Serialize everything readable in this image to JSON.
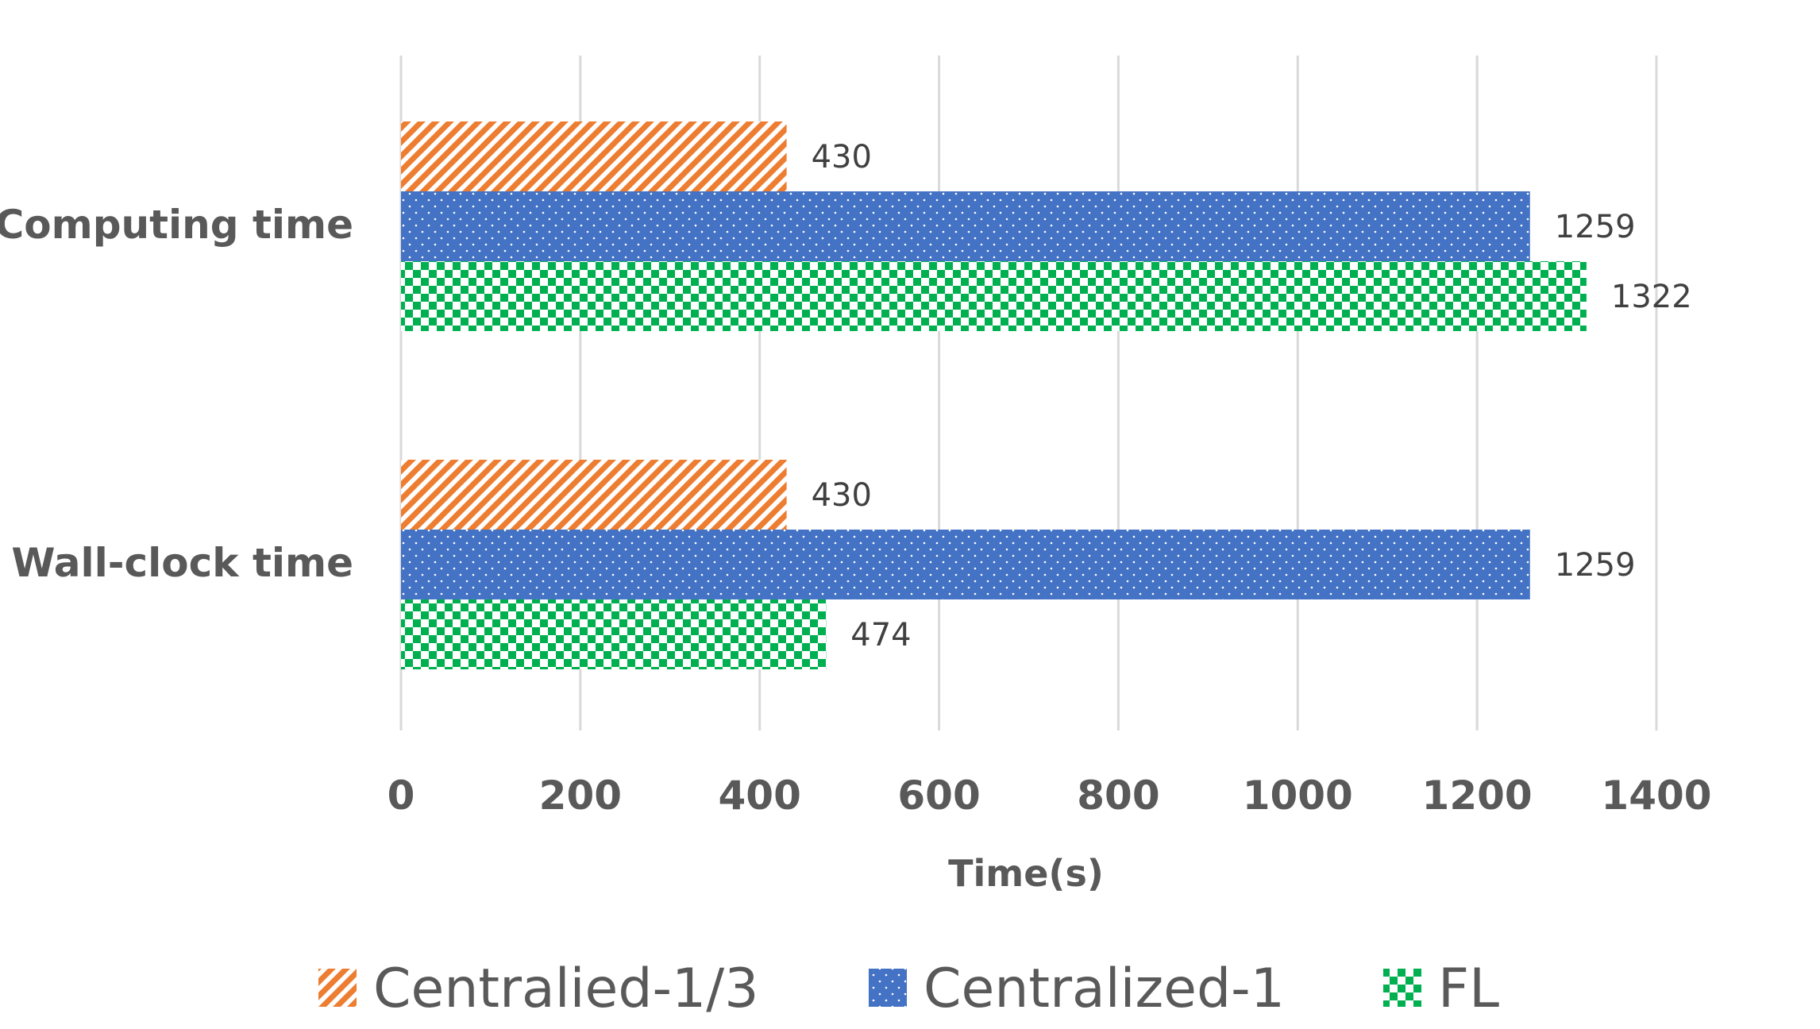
{
  "chart_data": {
    "type": "bar",
    "orientation": "horizontal",
    "categories": [
      "Computing time",
      "Wall-clock time"
    ],
    "series": [
      {
        "name": "Centralied-1/3",
        "values": [
          430,
          430
        ],
        "color": "#ED7D31",
        "pattern": "diagonal-stripes"
      },
      {
        "name": "Centralized-1",
        "values": [
          1259,
          1259
        ],
        "color": "#4472C4",
        "pattern": "dots"
      },
      {
        "name": "FL",
        "values": [
          1322,
          474
        ],
        "color": "#00B050",
        "pattern": "checkerboard"
      }
    ],
    "xlabel": "Time(s)",
    "xlim": [
      0,
      1400
    ],
    "xticks": [
      0,
      200,
      400,
      600,
      800,
      1000,
      1200,
      1400
    ],
    "grid": true,
    "legend_position": "bottom"
  }
}
